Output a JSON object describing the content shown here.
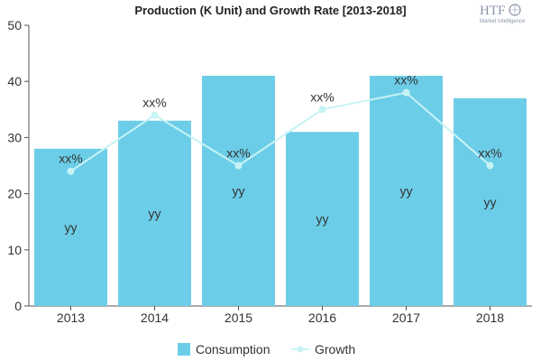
{
  "chart_data": {
    "type": "bar",
    "title": "Production (K Unit) and Growth Rate [2013-2018]",
    "categories": [
      "2013",
      "2014",
      "2015",
      "2016",
      "2017",
      "2018"
    ],
    "series": [
      {
        "name": "Consumption",
        "type": "bar",
        "values": [
          28,
          33,
          41,
          31,
          41,
          37
        ],
        "labels": [
          "yy",
          "yy",
          "yy",
          "yy",
          "yy",
          "yy"
        ],
        "color": "#6ccde8"
      },
      {
        "name": "Growth",
        "type": "line",
        "values": [
          24,
          34,
          25,
          35,
          38,
          25
        ],
        "labels": [
          "xx%",
          "xx%",
          "xx%",
          "xx%",
          "xx%",
          "xx%"
        ],
        "color": "#c7f3f4"
      }
    ],
    "ylim": [
      0,
      50
    ],
    "yticks": [
      0,
      10,
      20,
      30,
      40,
      50
    ],
    "xlabel": "",
    "ylabel": "",
    "grid": false,
    "legend_position": "bottom"
  },
  "logo": {
    "main": "HTF",
    "sub": "Market Intelligence"
  }
}
